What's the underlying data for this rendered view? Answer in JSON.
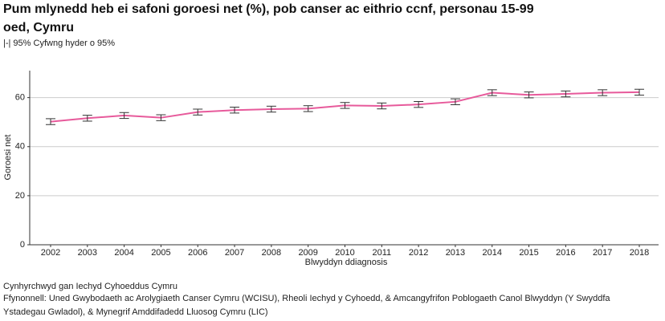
{
  "chart_data": {
    "type": "line",
    "title": [
      "Pum mlynedd heb ei safoni goroesi net (%), pob canser ac eithrio ccnf, personau 15-99",
      "oed, Cymru"
    ],
    "subtitle": "|-| 95% Cyfwng hyder o 95%",
    "x_label": "Blwyddyn ddiagnosis",
    "y_label": "Goroesi net",
    "categories": [
      "2002",
      "2003",
      "2004",
      "2005",
      "2006",
      "2007",
      "2008",
      "2009",
      "2010",
      "2011",
      "2012",
      "2013",
      "2014",
      "2015",
      "2016",
      "2017",
      "2018"
    ],
    "series": [
      {
        "name": "Goroesi net",
        "color": "#e75a9b",
        "values": [
          50.2,
          51.6,
          52.7,
          51.8,
          54.1,
          54.9,
          55.3,
          55.5,
          56.8,
          56.6,
          57.2,
          58.3,
          62.0,
          61.1,
          61.5,
          62.0,
          62.2
        ],
        "errors": [
          1.2,
          1.2,
          1.2,
          1.2,
          1.2,
          1.2,
          1.2,
          1.2,
          1.2,
          1.2,
          1.2,
          1.2,
          1.2,
          1.2,
          1.2,
          1.2,
          1.2
        ]
      }
    ],
    "ylim": [
      0,
      71
    ],
    "yticks": [
      0,
      20,
      40,
      60
    ],
    "grid": true,
    "footer": [
      "Cynhyrchwyd gan Iechyd Cyhoeddus Cymru",
      "Ffynonnell: Uned Gwybodaeth ac Arolygiaeth Canser Cymru (WCISU), Rheoli Iechyd y Cyhoedd, & Amcangyfrifon Poblogaeth Canol Blwyddyn (Y Swyddfa",
      "Ystadegau Gwladol), & Mynegrif Amddifadedd Lluosog Cymru (LIC)"
    ]
  }
}
